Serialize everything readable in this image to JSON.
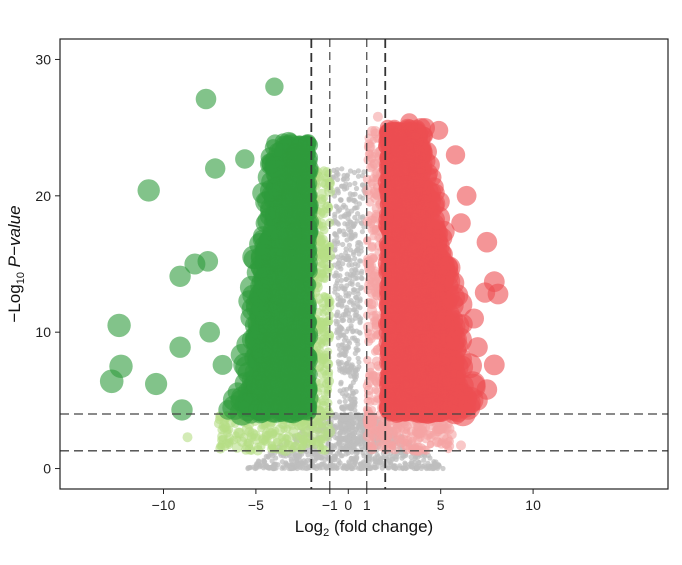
{
  "chart_data": {
    "type": "scatter",
    "subtype": "volcano",
    "xlabel": {
      "prefix": "Log",
      "subscript": "2",
      "suffix": " (fold change)"
    },
    "ylabel": {
      "prefix": "−Log",
      "subscript": "10",
      "italic": " P−value"
    },
    "xlim": [
      -15.6,
      17.3
    ],
    "ylim": [
      -1.5,
      31.5
    ],
    "x_ticks": [
      {
        "value": -10,
        "label": "−10"
      },
      {
        "value": -5,
        "label": "−5"
      },
      {
        "value": -1,
        "label": "−1"
      },
      {
        "value": 0,
        "label": "0"
      },
      {
        "value": 1,
        "label": "1"
      },
      {
        "value": 5,
        "label": "5"
      },
      {
        "value": 10,
        "label": "10"
      }
    ],
    "y_ticks": [
      {
        "value": 0,
        "label": "0"
      },
      {
        "value": 10,
        "label": "10"
      },
      {
        "value": 20,
        "label": "20"
      },
      {
        "value": 30,
        "label": "30"
      }
    ],
    "vlines": [
      {
        "x": -2,
        "style": "bold-dashed"
      },
      {
        "x": -1,
        "style": "thin-dashed"
      },
      {
        "x": 1,
        "style": "thin-dashed"
      },
      {
        "x": 2,
        "style": "bold-dashed"
      }
    ],
    "hlines": [
      {
        "y": 1.3,
        "style": "dashed"
      },
      {
        "y": 4,
        "style": "dashed"
      }
    ],
    "grid": false,
    "legend": "none",
    "colors": {
      "not_significant": "#bdbdbd",
      "down_strong": "#2e9b3c",
      "down_weak": "#b5dd86",
      "up_strong": "#ec4f52",
      "up_weak": "#f5a3a3"
    },
    "groups": [
      {
        "name": "not_significant",
        "color": "#bdbdbd",
        "rule": "|x|<1 or y<1.3"
      },
      {
        "name": "down_weak",
        "color": "#b5dd86",
        "rule": "x<-1, y>=1.3, and (x>-2 or y<4)"
      },
      {
        "name": "down_strong",
        "color": "#2e9b3c",
        "rule": "x<=-2 and y>=4"
      },
      {
        "name": "up_weak",
        "color": "#f5a3a3",
        "rule": "x>1, y>=1.3, and (x<2 or y<4)"
      },
      {
        "name": "up_strong",
        "color": "#ec4f52",
        "rule": "x>=2 and y>=4"
      }
    ],
    "highlighted_points": [
      {
        "x": -7.7,
        "y": 27.1,
        "group": "down_strong"
      },
      {
        "x": -4.0,
        "y": 28.0,
        "group": "down_strong"
      },
      {
        "x": -10.8,
        "y": 20.4,
        "group": "down_strong"
      },
      {
        "x": -7.2,
        "y": 22.0,
        "group": "down_strong"
      },
      {
        "x": -5.6,
        "y": 22.7,
        "group": "down_strong"
      },
      {
        "x": -9.1,
        "y": 14.1,
        "group": "down_strong"
      },
      {
        "x": -8.3,
        "y": 15.0,
        "group": "down_strong"
      },
      {
        "x": -7.6,
        "y": 15.2,
        "group": "down_strong"
      },
      {
        "x": -12.4,
        "y": 10.5,
        "group": "down_strong"
      },
      {
        "x": -9.1,
        "y": 8.9,
        "group": "down_strong"
      },
      {
        "x": -7.5,
        "y": 10.0,
        "group": "down_strong"
      },
      {
        "x": -12.3,
        "y": 7.5,
        "group": "down_strong"
      },
      {
        "x": -12.8,
        "y": 6.4,
        "group": "down_strong"
      },
      {
        "x": -10.4,
        "y": 6.2,
        "group": "down_strong"
      },
      {
        "x": -9.0,
        "y": 4.3,
        "group": "down_strong"
      },
      {
        "x": -6.8,
        "y": 7.6,
        "group": "down_strong"
      },
      {
        "x": -6.0,
        "y": 5.6,
        "group": "down_strong"
      },
      {
        "x": -6.5,
        "y": 4.3,
        "group": "down_strong"
      },
      {
        "x": -8.7,
        "y": 2.3,
        "group": "down_weak"
      },
      {
        "x": -7.0,
        "y": 3.3,
        "group": "down_weak"
      },
      {
        "x": 4.9,
        "y": 24.8,
        "group": "up_strong"
      },
      {
        "x": 5.8,
        "y": 23.0,
        "group": "up_strong"
      },
      {
        "x": 6.4,
        "y": 20.0,
        "group": "up_strong"
      },
      {
        "x": 6.1,
        "y": 18.0,
        "group": "up_strong"
      },
      {
        "x": 7.5,
        "y": 16.6,
        "group": "up_strong"
      },
      {
        "x": 7.9,
        "y": 13.7,
        "group": "up_strong"
      },
      {
        "x": 8.1,
        "y": 12.8,
        "group": "up_strong"
      },
      {
        "x": 7.4,
        "y": 12.9,
        "group": "up_strong"
      },
      {
        "x": 6.8,
        "y": 11.0,
        "group": "up_strong"
      },
      {
        "x": 6.2,
        "y": 10.6,
        "group": "up_strong"
      },
      {
        "x": 7.0,
        "y": 8.9,
        "group": "up_strong"
      },
      {
        "x": 7.9,
        "y": 7.6,
        "group": "up_strong"
      },
      {
        "x": 7.5,
        "y": 5.8,
        "group": "up_strong"
      },
      {
        "x": 7.0,
        "y": 5.0,
        "group": "up_strong"
      },
      {
        "x": 3.3,
        "y": 25.4,
        "group": "up_strong"
      },
      {
        "x": 2.6,
        "y": 24.3,
        "group": "up_strong"
      },
      {
        "x": 1.6,
        "y": 25.8,
        "group": "up_weak"
      },
      {
        "x": 5.6,
        "y": 2.5,
        "group": "up_weak"
      },
      {
        "x": 6.1,
        "y": 1.7,
        "group": "up_weak"
      }
    ],
    "dense_clouds": [
      {
        "group": "not_significant",
        "count": 900,
        "x_range": [
          -5.5,
          5.5
        ],
        "y_range": [
          0,
          4
        ],
        "shape": "funnel"
      },
      {
        "group": "not_significant",
        "count": 500,
        "x_range": [
          -1,
          1
        ],
        "y_range": [
          1.3,
          22
        ],
        "shape": "column"
      },
      {
        "group": "down_weak",
        "count": 180,
        "x_range": [
          -7,
          -1
        ],
        "y_range": [
          1.3,
          4
        ],
        "shape": "band"
      },
      {
        "group": "down_weak",
        "count": 220,
        "x_range": [
          -2,
          -1
        ],
        "y_range": [
          4,
          22
        ],
        "shape": "band"
      },
      {
        "group": "up_weak",
        "count": 180,
        "x_range": [
          1,
          5.5
        ],
        "y_range": [
          1.3,
          4
        ],
        "shape": "band"
      },
      {
        "group": "up_weak",
        "count": 220,
        "x_range": [
          1,
          2
        ],
        "y_range": [
          4,
          25
        ],
        "shape": "band"
      },
      {
        "group": "down_strong",
        "count": 1400,
        "x_range": [
          -6.5,
          -2
        ],
        "y_range": [
          4,
          24
        ],
        "shape": "cluster"
      },
      {
        "group": "up_strong",
        "count": 1800,
        "x_range": [
          2,
          7
        ],
        "y_range": [
          4,
          25
        ],
        "shape": "cluster"
      }
    ]
  }
}
